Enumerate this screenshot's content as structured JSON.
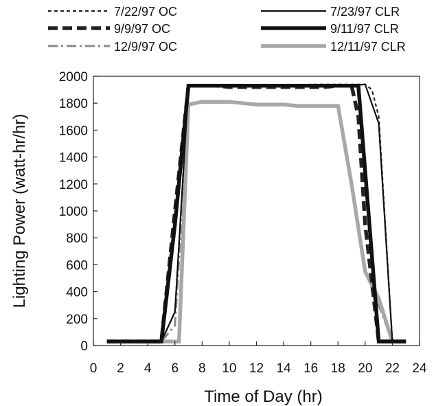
{
  "chart_data": {
    "type": "line",
    "title": "",
    "xlabel": "Time of Day (hr)",
    "ylabel": "Lighting Power (watt-hr/hr)",
    "xlim": [
      0,
      24
    ],
    "ylim": [
      0,
      2000
    ],
    "xticks": [
      0,
      2,
      4,
      6,
      8,
      10,
      12,
      14,
      16,
      18,
      20,
      22,
      24
    ],
    "yticks": [
      0,
      200,
      400,
      600,
      800,
      1000,
      1200,
      1400,
      1600,
      1800,
      2000
    ],
    "grid": false,
    "legend_position": "top",
    "series": [
      {
        "name": "7/22/97 OC",
        "style": "dotted",
        "color": "#222222",
        "x": [
          1,
          2,
          3,
          4,
          5,
          6,
          7,
          8,
          9,
          10,
          11,
          12,
          13,
          14,
          15,
          16,
          17,
          18,
          19,
          20,
          20.5,
          21,
          22,
          23
        ],
        "y": [
          30,
          30,
          30,
          30,
          30,
          250,
          1930,
          1930,
          1930,
          1930,
          1930,
          1930,
          1930,
          1930,
          1930,
          1940,
          1940,
          1940,
          1940,
          1940,
          1900,
          1700,
          30,
          30
        ]
      },
      {
        "name": "7/23/97 CLR",
        "style": "solid",
        "color": "#111111",
        "x": [
          1,
          2,
          3,
          4,
          5,
          6,
          7,
          8,
          9,
          10,
          11,
          12,
          13,
          14,
          15,
          16,
          17,
          18,
          19,
          20,
          21,
          22,
          23
        ],
        "y": [
          30,
          30,
          30,
          30,
          30,
          250,
          1930,
          1930,
          1930,
          1930,
          1930,
          1930,
          1930,
          1930,
          1930,
          1930,
          1930,
          1930,
          1930,
          1940,
          1650,
          30,
          30
        ]
      },
      {
        "name": "9/9/97 OC",
        "style": "thick-dashed",
        "color": "#222222",
        "x": [
          1,
          2,
          3,
          4,
          5,
          6,
          7,
          8,
          9,
          10,
          11,
          12,
          13,
          14,
          15,
          16,
          17,
          18,
          19,
          19.5,
          20,
          21,
          22,
          23
        ],
        "y": [
          30,
          30,
          30,
          30,
          30,
          1000,
          1930,
          1930,
          1930,
          1920,
          1920,
          1920,
          1920,
          1920,
          1920,
          1920,
          1920,
          1930,
          1930,
          1700,
          900,
          30,
          30,
          30
        ]
      },
      {
        "name": "9/11/97 CLR",
        "style": "thick-solid",
        "color": "#111111",
        "x": [
          1,
          2,
          3,
          4,
          5,
          6,
          7,
          8,
          9,
          10,
          11,
          12,
          13,
          14,
          15,
          16,
          17,
          18,
          19,
          19.5,
          21,
          22,
          23
        ],
        "y": [
          30,
          30,
          30,
          30,
          30,
          900,
          1930,
          1930,
          1930,
          1930,
          1930,
          1930,
          1930,
          1930,
          1930,
          1930,
          1930,
          1930,
          1930,
          1930,
          30,
          30,
          30
        ]
      },
      {
        "name": "12/9/97 OC",
        "style": "dash-dot",
        "color": "#8a8a8a",
        "x": [
          1,
          2,
          3,
          4,
          5,
          6,
          7,
          8,
          9,
          10,
          11,
          12,
          13,
          14,
          15,
          16,
          17,
          18,
          19,
          20,
          21,
          22,
          23
        ],
        "y": [
          30,
          30,
          30,
          30,
          30,
          150,
          1790,
          1810,
          1810,
          1810,
          1800,
          1790,
          1790,
          1790,
          1780,
          1780,
          1780,
          1780,
          1200,
          550,
          300,
          30,
          30
        ]
      },
      {
        "name": "12/11/97 CLR",
        "style": "thick-solid",
        "color": "#a8a8a8",
        "x": [
          1,
          2,
          3,
          4,
          5,
          6,
          6.3,
          7,
          8,
          9,
          10,
          11,
          12,
          13,
          14,
          15,
          16,
          17,
          18,
          19,
          20,
          21,
          22,
          23
        ],
        "y": [
          30,
          30,
          30,
          30,
          30,
          30,
          30,
          1790,
          1810,
          1810,
          1810,
          1800,
          1790,
          1790,
          1790,
          1780,
          1780,
          1780,
          1780,
          1200,
          550,
          350,
          30,
          30
        ]
      }
    ]
  }
}
